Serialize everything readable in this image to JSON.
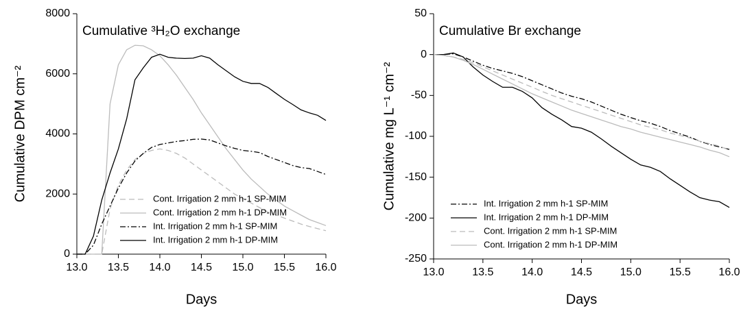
{
  "chart_data": [
    {
      "type": "line",
      "title": "Cumulative ³H₂O exchange",
      "x_label": "Days",
      "y_label": "Cumulative DPM cm⁻²",
      "x": [
        13.0,
        13.1,
        13.2,
        13.3,
        13.4,
        13.5,
        13.6,
        13.7,
        13.8,
        13.9,
        14.0,
        14.1,
        14.2,
        14.3,
        14.4,
        14.5,
        14.6,
        14.7,
        14.8,
        14.9,
        15.0,
        15.1,
        15.2,
        15.3,
        15.4,
        15.5,
        15.6,
        15.7,
        15.8,
        15.9,
        16.0
      ],
      "xlim": [
        13,
        16
      ],
      "xticks": [
        {
          "value": 13,
          "label": "13.0"
        },
        {
          "value": 13.5,
          "label": "13.5"
        },
        {
          "value": 14,
          "label": "14.0"
        },
        {
          "value": 14.5,
          "label": "14.5"
        },
        {
          "value": 15,
          "label": "15.0"
        },
        {
          "value": 15.5,
          "label": "15.5"
        },
        {
          "value": 16,
          "label": "16.0"
        }
      ],
      "ylim": [
        0,
        8000
      ],
      "yticks": [
        0,
        2000,
        4000,
        6000,
        8000
      ],
      "legend": "lower right",
      "series": [
        {
          "name": "Cont. Irrigation 2 mm h-1 SP-MIM",
          "color": "#bbbbbb",
          "dash": "dashed",
          "values": [
            0,
            0,
            0,
            0,
            1500,
            2300,
            2800,
            3150,
            3350,
            3450,
            3500,
            3450,
            3350,
            3200,
            3000,
            2800,
            2600,
            2400,
            2200,
            2000,
            1850,
            1700,
            1550,
            1400,
            1300,
            1200,
            1100,
            1000,
            920,
            850,
            780
          ]
        },
        {
          "name": "Cont. Irrigation 2 mm h-1 DP-MIM",
          "color": "#bbbbbb",
          "dash": "solid",
          "values": [
            0,
            0,
            0,
            0,
            5000,
            6300,
            6800,
            6950,
            6930,
            6800,
            6600,
            6300,
            5950,
            5550,
            5150,
            4700,
            4300,
            3900,
            3500,
            3150,
            2800,
            2500,
            2250,
            2000,
            1800,
            1600,
            1450,
            1300,
            1150,
            1050,
            950
          ]
        },
        {
          "name": "Int. Irrigation 2 mm h-1 SP-MIM",
          "color": "#000000",
          "dash": "dashdot",
          "values": [
            0,
            0,
            300,
            1000,
            1600,
            2200,
            2700,
            3100,
            3350,
            3550,
            3650,
            3700,
            3750,
            3780,
            3820,
            3830,
            3800,
            3700,
            3600,
            3520,
            3450,
            3420,
            3380,
            3250,
            3150,
            3050,
            2950,
            2880,
            2850,
            2750,
            2650
          ]
        },
        {
          "name": "Int. Irrigation 2 mm h-1 DP-MIM",
          "color": "#000000",
          "dash": "solid",
          "values": [
            0,
            0,
            600,
            1800,
            2700,
            3500,
            4500,
            5800,
            6200,
            6550,
            6650,
            6550,
            6520,
            6510,
            6520,
            6600,
            6520,
            6300,
            6100,
            5900,
            5750,
            5680,
            5680,
            5550,
            5350,
            5150,
            4980,
            4800,
            4700,
            4620,
            4450
          ]
        }
      ]
    },
    {
      "type": "line",
      "title": "Cumulative Br exchange",
      "x_label": "Days",
      "y_label": "Cumulative mg L⁻¹ cm⁻²",
      "x": [
        13.0,
        13.1,
        13.2,
        13.3,
        13.4,
        13.5,
        13.6,
        13.7,
        13.8,
        13.9,
        14.0,
        14.1,
        14.2,
        14.3,
        14.4,
        14.5,
        14.6,
        14.7,
        14.8,
        14.9,
        15.0,
        15.1,
        15.2,
        15.3,
        15.4,
        15.5,
        15.6,
        15.7,
        15.8,
        15.9,
        16.0
      ],
      "xlim": [
        13,
        16
      ],
      "xticks": [
        {
          "value": 13,
          "label": "13.0"
        },
        {
          "value": 13.5,
          "label": "13.5"
        },
        {
          "value": 14,
          "label": "14.0"
        },
        {
          "value": 14.5,
          "label": "14.5"
        },
        {
          "value": 15,
          "label": "15.0"
        },
        {
          "value": 15.5,
          "label": "15.5"
        },
        {
          "value": 16,
          "label": "16.0"
        }
      ],
      "ylim": [
        -250,
        50
      ],
      "yticks": [
        -250,
        -200,
        -150,
        -100,
        -50,
        0,
        50
      ],
      "legend": "lower left",
      "series": [
        {
          "name": "Int. Irrigation 2 mm h-1 SP-MIM",
          "color": "#000000",
          "dash": "dashdot",
          "values": [
            0,
            0,
            1,
            -3,
            -8,
            -13,
            -17,
            -20,
            -23,
            -27,
            -32,
            -37,
            -42,
            -47,
            -51,
            -54,
            -58,
            -63,
            -68,
            -73,
            -77,
            -81,
            -84,
            -88,
            -93,
            -97,
            -101,
            -106,
            -110,
            -113,
            -116
          ]
        },
        {
          "name": "Int. Irrigation 2 mm h-1 DP-MIM",
          "color": "#000000",
          "dash": "solid",
          "values": [
            0,
            0,
            2,
            -3,
            -15,
            -25,
            -33,
            -40,
            -40,
            -45,
            -53,
            -65,
            -73,
            -80,
            -88,
            -90,
            -95,
            -103,
            -112,
            -120,
            -128,
            -135,
            -138,
            -143,
            -152,
            -160,
            -168,
            -175,
            -178,
            -180,
            -187
          ]
        },
        {
          "name": "Cont. Irrigation 2 mm h-1 SP-MIM",
          "color": "#bbbbbb",
          "dash": "dashed",
          "values": [
            0,
            -1,
            -3,
            -6,
            -10,
            -15,
            -20,
            -25,
            -30,
            -35,
            -40,
            -45,
            -50,
            -54,
            -58,
            -62,
            -66,
            -70,
            -74,
            -78,
            -82,
            -86,
            -89,
            -92,
            -96,
            -99,
            -102,
            -106,
            -109,
            -112,
            -117
          ]
        },
        {
          "name": "Cont. Irrigation 2 mm h-1 DP-MIM",
          "color": "#bbbbbb",
          "dash": "solid",
          "values": [
            0,
            -1,
            -3,
            -7,
            -12,
            -18,
            -24,
            -30,
            -36,
            -42,
            -48,
            -53,
            -58,
            -63,
            -68,
            -72,
            -76,
            -80,
            -84,
            -88,
            -91,
            -95,
            -98,
            -101,
            -104,
            -107,
            -110,
            -113,
            -117,
            -120,
            -125
          ]
        }
      ]
    }
  ]
}
